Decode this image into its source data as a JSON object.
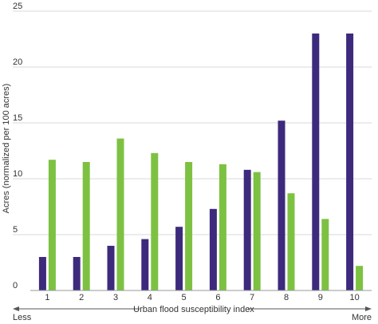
{
  "chart_data": {
    "type": "bar",
    "categories": [
      "1",
      "2",
      "3",
      "4",
      "5",
      "6",
      "7",
      "8",
      "9",
      "10"
    ],
    "series": [
      {
        "color": "#3d2a7d",
        "values": [
          3.0,
          3.0,
          4.0,
          4.6,
          5.7,
          7.3,
          10.8,
          15.2,
          23.0,
          23.0
        ]
      },
      {
        "color": "#7dc142",
        "values": [
          11.7,
          11.5,
          13.6,
          12.3,
          11.5,
          11.3,
          10.6,
          8.7,
          6.4,
          2.2
        ]
      }
    ],
    "xlabel": "Urban flood susceptibility index",
    "ylabel": "Acres (normalized per 100 acres)",
    "ylim": [
      0,
      25
    ],
    "yticks": [
      "0",
      "5",
      "10",
      "15",
      "20",
      "25"
    ],
    "x_left_label": "Less",
    "x_right_label": "More",
    "grid": true
  }
}
